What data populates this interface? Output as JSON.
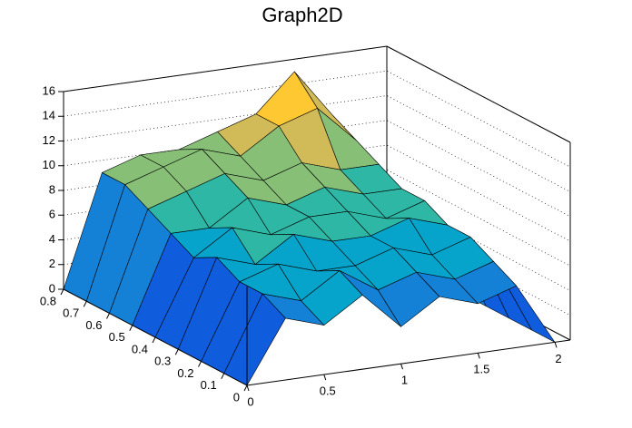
{
  "chart_data": {
    "type": "surface",
    "title": "Graph2D",
    "x": [
      0,
      0.25,
      0.5,
      0.75,
      1,
      1.25,
      1.5,
      1.75,
      2
    ],
    "y": [
      0,
      0.1,
      0.2,
      0.3,
      0.4,
      0.5,
      0.6,
      0.7,
      0.8
    ],
    "z": [
      [
        0,
        5,
        4,
        6,
        3,
        5,
        4,
        5,
        0
      ],
      [
        0,
        6,
        5,
        7,
        5,
        6,
        5,
        6,
        0
      ],
      [
        0,
        6,
        7,
        6,
        6,
        7,
        6,
        7,
        0
      ],
      [
        0,
        7,
        6,
        8,
        7,
        7,
        8,
        7,
        0
      ],
      [
        0,
        6,
        8,
        7,
        8,
        8,
        7,
        8,
        0
      ],
      [
        0,
        7,
        7,
        9,
        8,
        9,
        8,
        8,
        0
      ],
      [
        0,
        8,
        9,
        10,
        9,
        10,
        9,
        9,
        0
      ],
      [
        0,
        9,
        10,
        11,
        10,
        12,
        13,
        10,
        0
      ],
      [
        0,
        9,
        10,
        10,
        11,
        12,
        15,
        11,
        0
      ]
    ],
    "xlim": [
      0,
      2.1
    ],
    "ylim": [
      0,
      0.8
    ],
    "zlim": [
      0,
      16
    ],
    "xticks": [
      0,
      0.5,
      1,
      1.5,
      2
    ],
    "yticks": [
      0,
      0.1,
      0.2,
      0.3,
      0.4,
      0.5,
      0.6,
      0.7,
      0.8
    ],
    "zticks": [
      0,
      2,
      4,
      6,
      8,
      10,
      12,
      14,
      16
    ],
    "grid": true,
    "palette": [
      "#352a87",
      "#0f5cdd",
      "#1481d6",
      "#06a4ca",
      "#2eb7a4",
      "#87bf77",
      "#d1bb59",
      "#fec832",
      "#f9fb0e"
    ]
  }
}
